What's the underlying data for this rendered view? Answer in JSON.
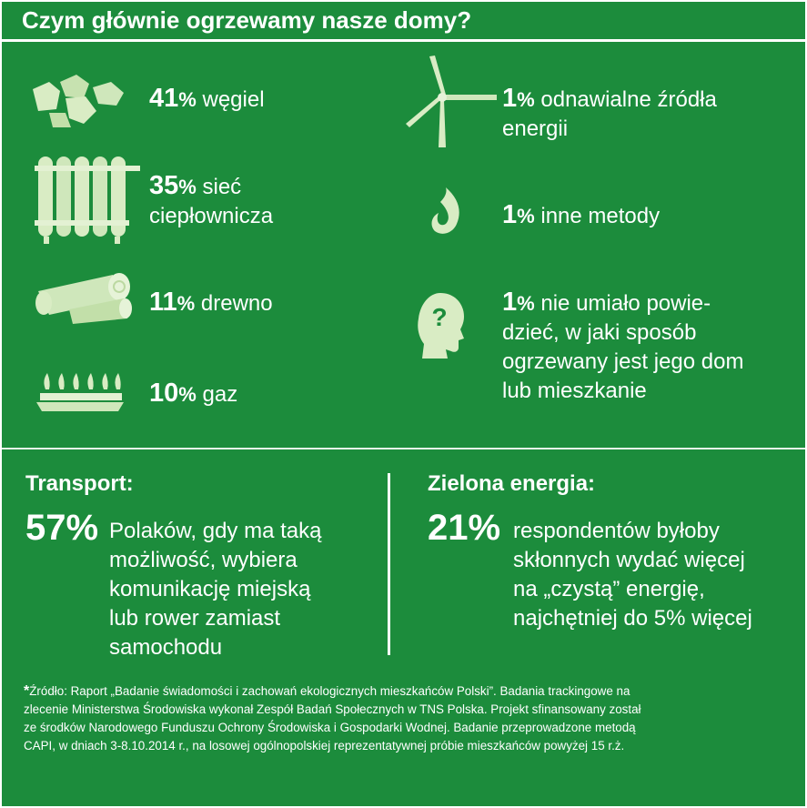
{
  "header": {
    "title": "Czym głównie ogrzewamy nasze domy?"
  },
  "heating": {
    "left": [
      {
        "icon": "coal-icon",
        "value": "41",
        "unit": "%",
        "label_lines": [
          "węgiel"
        ]
      },
      {
        "icon": "radiator-icon",
        "value": "35",
        "unit": "%",
        "label_lines": [
          "sieć",
          "ciepłownicza"
        ]
      },
      {
        "icon": "wood-log-icon",
        "value": "11",
        "unit": "%",
        "label_lines": [
          "drewno"
        ]
      },
      {
        "icon": "gas-burner-icon",
        "value": "10",
        "unit": "%",
        "label_lines": [
          "gaz"
        ]
      }
    ],
    "right": [
      {
        "icon": "wind-turbine-icon",
        "value": "1",
        "unit": "%",
        "label_lines": [
          "odnawialne źródła",
          "energii"
        ]
      },
      {
        "icon": "flame-icon",
        "value": "1",
        "unit": "%",
        "label_lines": [
          "inne metody"
        ]
      },
      {
        "icon": "head-question-icon",
        "value": "1",
        "unit": "%",
        "label_lines": [
          "nie umiało powie-",
          "dzieć, w jaki sposób",
          "ogrzewany jest jego dom",
          "lub mieszkanie"
        ]
      }
    ]
  },
  "transport": {
    "title": "Transport:",
    "value": "57%",
    "lines": [
      "Polaków, gdy ma taką",
      "możliwość, wybiera",
      "komunikację miejską",
      "lub rower zamiast",
      "samochodu"
    ]
  },
  "green_energy": {
    "title": "Zielona energia:",
    "value": "21%",
    "lines": [
      "respondentów byłoby",
      "skłonnych wydać więcej",
      "na „czystą” energię,",
      "najchętniej do 5% więcej"
    ]
  },
  "source": {
    "star": "*",
    "lines": [
      "Źródło: Raport „Badanie świadomości i zachowań ekologicznych mieszkańców Polski”. Badania trackingowe na",
      "zlecenie Ministerstwa Środowiska wykonał Zespół Badań Społecznych w TNS Polska. Projekt sfinansowany został",
      "ze środków Narodowego Funduszu Ochrony Środowiska i Gospodarki Wodnej. Badanie przeprowadzone metodą",
      "CAPI, w dniach 3-8.10.2014 r., na losowej ogólnopolskiej reprezentatywnej próbie mieszkańców powyżej 15 r.ż."
    ]
  },
  "colors": {
    "background": "#1c8c3c",
    "icon": "#d9ecc4",
    "text": "#ffffff"
  }
}
